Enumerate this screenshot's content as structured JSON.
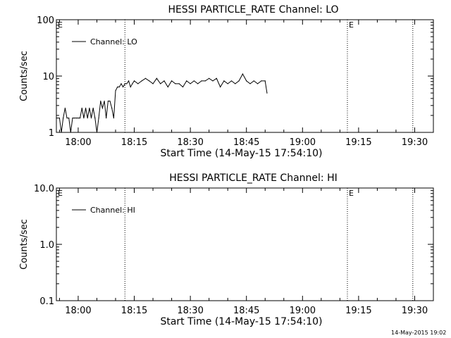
{
  "footer_timestamp": "14-May-2015 19:02",
  "chart_data": [
    {
      "type": "line",
      "title": "HESSI PARTICLE_RATE Channel: LO",
      "xlabel": "Start Time (14-May-15 17:54:10)",
      "ylabel": "Counts/sec",
      "yscale": "log",
      "xlim": [
        "17:54:10",
        "19:35:00"
      ],
      "ylim": [
        1,
        100
      ],
      "xticks": [
        "18:00",
        "18:15",
        "18:30",
        "18:45",
        "19:00",
        "19:15",
        "19:30"
      ],
      "yticks": [
        "1",
        "10",
        "100"
      ],
      "ytick_values": [
        1,
        10,
        100
      ],
      "grid": false,
      "legend": "top-left",
      "markers": [
        {
          "time": "18:12:30",
          "label": ""
        },
        {
          "time": "19:12:00",
          "label": "E"
        },
        {
          "time": "19:29:30",
          "label": ""
        }
      ],
      "left_edge_label": "E",
      "series": [
        {
          "name": "Channel: LO",
          "x": [
            "17:54:10",
            "17:55:00",
            "17:55:30",
            "17:56:00",
            "17:56:30",
            "17:57:00",
            "17:57:30",
            "17:58:00",
            "17:58:30",
            "17:59:00",
            "17:59:30",
            "18:00:00",
            "18:00:30",
            "18:01:00",
            "18:01:30",
            "18:02:00",
            "18:02:30",
            "18:03:00",
            "18:03:30",
            "18:04:00",
            "18:04:30",
            "18:05:00",
            "18:05:30",
            "18:06:00",
            "18:06:30",
            "18:07:00",
            "18:07:30",
            "18:08:00",
            "18:08:30",
            "18:09:00",
            "18:09:30",
            "18:10:00",
            "18:10:30",
            "18:11:00",
            "18:11:30",
            "18:12:00",
            "18:12:30",
            "18:13:00",
            "18:13:30",
            "18:14:00",
            "18:14:30",
            "18:15:00",
            "18:16:00",
            "18:17:00",
            "18:18:00",
            "18:19:00",
            "18:20:00",
            "18:21:00",
            "18:22:00",
            "18:23:00",
            "18:24:00",
            "18:25:00",
            "18:26:00",
            "18:27:00",
            "18:28:00",
            "18:29:00",
            "18:30:00",
            "18:31:00",
            "18:32:00",
            "18:33:00",
            "18:34:00",
            "18:35:00",
            "18:36:00",
            "18:37:00",
            "18:38:00",
            "18:39:00",
            "18:40:00",
            "18:41:00",
            "18:42:00",
            "18:43:00",
            "18:44:00",
            "18:45:00",
            "18:46:00",
            "18:47:00",
            "18:48:00",
            "18:49:00",
            "18:50:00",
            "18:50:30"
          ],
          "y": [
            1.8,
            1.8,
            1,
            1.8,
            2.7,
            1.8,
            1.8,
            1,
            1.8,
            1.8,
            1.8,
            1.8,
            1.8,
            2.7,
            1.8,
            2.7,
            1.8,
            2.7,
            1.8,
            2.7,
            1.8,
            1,
            1.8,
            3.6,
            2.7,
            3.6,
            1.8,
            3.6,
            3.6,
            2.7,
            1.8,
            5.5,
            6.4,
            6.4,
            7.3,
            6.4,
            7.3,
            7.3,
            8.2,
            6.4,
            7.3,
            8.2,
            7.3,
            8.2,
            9.1,
            8.2,
            7.3,
            9.1,
            7.3,
            8.2,
            6.4,
            8.2,
            7.3,
            7.3,
            6.4,
            8.2,
            7.3,
            8.2,
            7.3,
            8.2,
            8.2,
            9.1,
            8.2,
            9.1,
            6.4,
            8.2,
            7.3,
            8.2,
            7.3,
            8.2,
            10.9,
            8.2,
            7.3,
            8.2,
            7.3,
            8.2,
            8.2,
            5.0
          ]
        }
      ]
    },
    {
      "type": "line",
      "title": "HESSI PARTICLE_RATE Channel: HI",
      "xlabel": "Start Time (14-May-15 17:54:10)",
      "ylabel": "Counts/sec",
      "yscale": "log",
      "xlim": [
        "17:54:10",
        "19:35:00"
      ],
      "ylim": [
        0.1,
        10
      ],
      "xticks": [
        "18:00",
        "18:15",
        "18:30",
        "18:45",
        "19:00",
        "19:15",
        "19:30"
      ],
      "yticks": [
        "0.1",
        "1.0",
        "10.0"
      ],
      "ytick_values": [
        0.1,
        1,
        10
      ],
      "grid": false,
      "legend": "top-left",
      "markers": [
        {
          "time": "18:12:30",
          "label": ""
        },
        {
          "time": "19:12:00",
          "label": "E"
        },
        {
          "time": "19:29:30",
          "label": ""
        }
      ],
      "left_edge_label": "E",
      "series": [
        {
          "name": "Channel: HI",
          "x": [],
          "y": []
        }
      ]
    }
  ]
}
